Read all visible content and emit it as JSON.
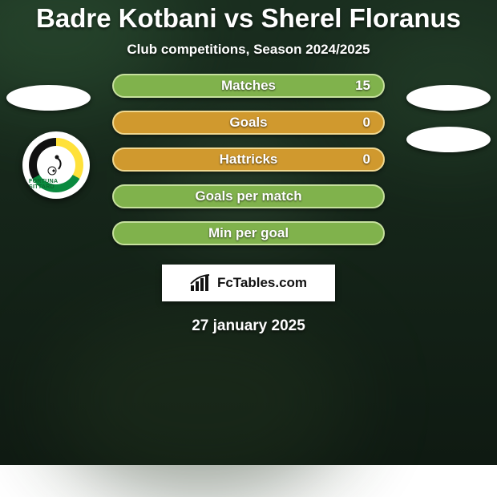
{
  "title": {
    "text": "Badre Kotbani vs Sherel Floranus",
    "fontsize": 33,
    "color": "#ffffff"
  },
  "subtitle": {
    "text": "Club competitions, Season 2024/2025",
    "fontsize": 17,
    "color": "#ffffff"
  },
  "crest": {
    "label": "FORTUNA SITTARD",
    "fontsize": 7
  },
  "bars": {
    "label_fontsize": 17,
    "value_fontsize": 17,
    "height": 30,
    "gap": 16,
    "items": [
      {
        "label": "Matches",
        "value": "15",
        "bg": "#80b24c",
        "border": "#c6e09e"
      },
      {
        "label": "Goals",
        "value": "0",
        "bg": "#d0992e",
        "border": "#f0d890"
      },
      {
        "label": "Hattricks",
        "value": "0",
        "bg": "#d0992e",
        "border": "#f0d890"
      },
      {
        "label": "Goals per match",
        "value": "",
        "bg": "#80b24c",
        "border": "#c6e09e"
      },
      {
        "label": "Min per goal",
        "value": "",
        "bg": "#80b24c",
        "border": "#c6e09e"
      }
    ]
  },
  "brand": {
    "text": "FcTables.com",
    "fontsize": 17,
    "color": "#111111",
    "bg": "#ffffff"
  },
  "date": {
    "text": "27 january 2025",
    "fontsize": 19,
    "color": "#ffffff"
  },
  "side_ellipses": {
    "bg": "#ffffff"
  },
  "background": {
    "top": "#1a2e1f",
    "bottom": "#0f1a12"
  }
}
